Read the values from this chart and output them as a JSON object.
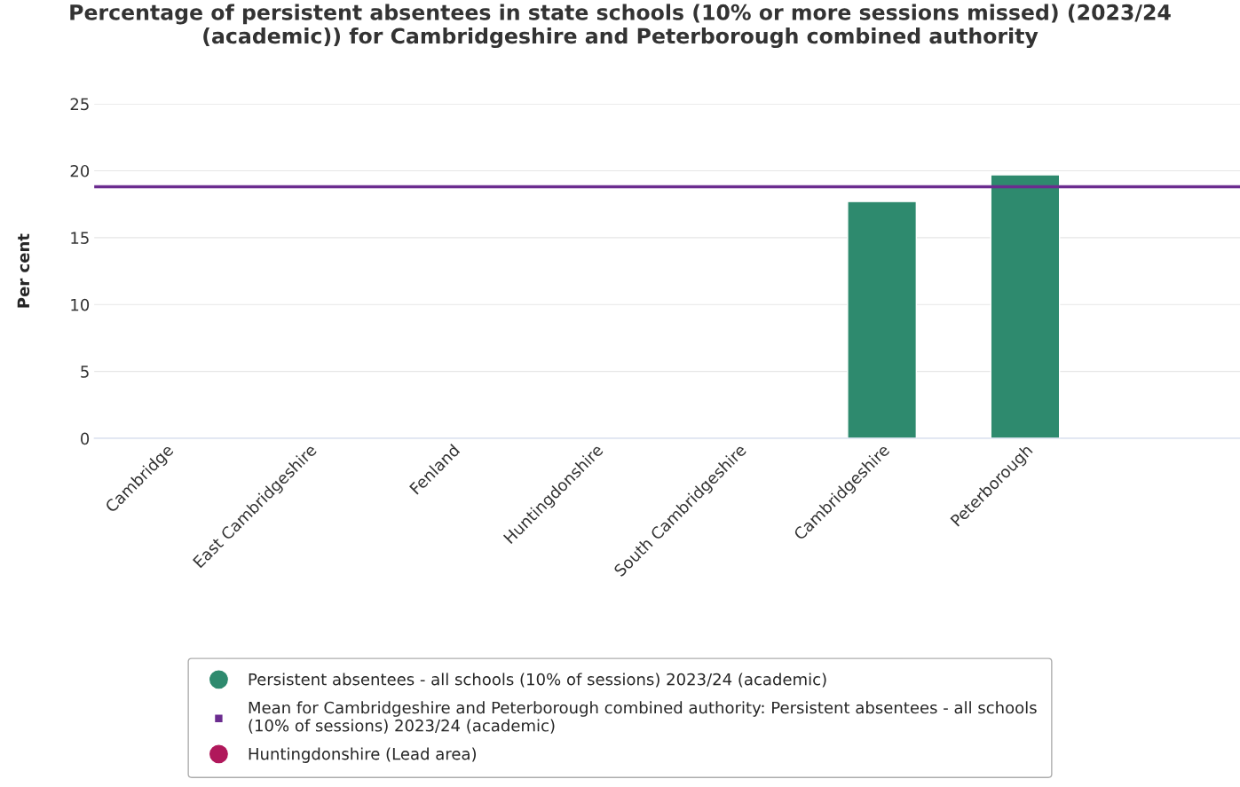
{
  "chart_data": {
    "type": "bar",
    "title": "Percentage of persistent absentees in state schools (10% or more sessions missed) (2023/24 (academic)) for Cambridgeshire and Peterborough combined authority",
    "ylabel": "Per cent",
    "categories": [
      "Cambridge",
      "East Cambridgeshire",
      "Fenland",
      "Huntingdonshire",
      "South Cambridgeshire",
      "Cambridgeshire",
      "Peterborough",
      null
    ],
    "series": [
      {
        "name": "Persistent absentees - all schools (10% of sessions) 2023/24 (academic)",
        "color": "#2e8a6e",
        "values": [
          null,
          null,
          null,
          null,
          null,
          17.7,
          19.7,
          null
        ]
      },
      {
        "name": "Huntingdonshire (Lead area)",
        "color": "#b0185b",
        "values": [
          null,
          null,
          null,
          null,
          null,
          null,
          null,
          null
        ]
      }
    ],
    "ref_lines": [
      {
        "axis": "y",
        "value": 18.8,
        "label": "Mean for Cambridgeshire and Peterborough combined authority: Persistent absentees - all schools (10% of sessions) 2023/24 (academic)",
        "color": "#6b2c8f"
      }
    ],
    "ylim": [
      0,
      25
    ],
    "yticks": [
      0,
      5,
      10,
      15,
      20,
      25
    ],
    "grid": "y",
    "legend": "bottom"
  }
}
